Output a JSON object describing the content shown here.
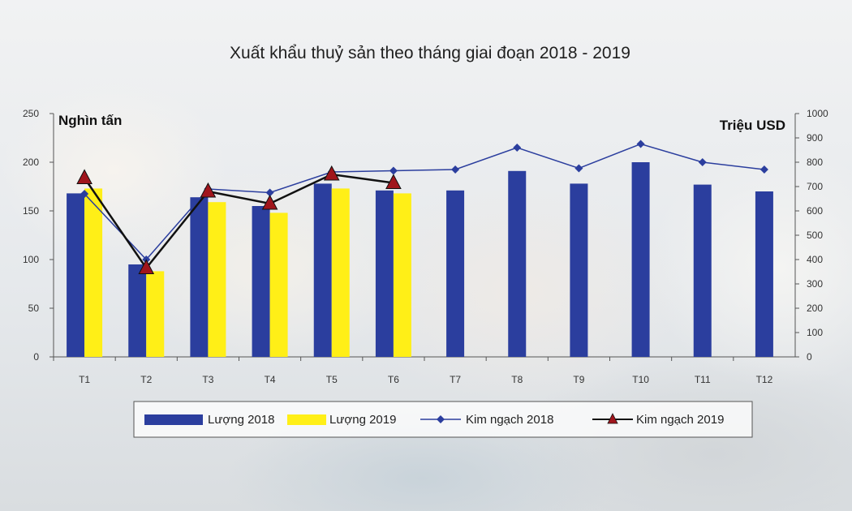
{
  "chart_data": {
    "type": "bar",
    "title": "Xuất khẩu thuỷ sản theo tháng giai đoạn 2018 - 2019",
    "ylabel_left": "Nghìn tấn",
    "ylabel_right": "Triệu USD",
    "categories": [
      "T1",
      "T2",
      "T3",
      "T4",
      "T5",
      "T6",
      "T7",
      "T8",
      "T9",
      "T10",
      "T11",
      "T12"
    ],
    "y_left": {
      "range": [
        0,
        250
      ],
      "ticks": [
        "0",
        "50",
        "100",
        "150",
        "200",
        "250"
      ]
    },
    "y_right": {
      "range": [
        0,
        1000
      ],
      "ticks": [
        "0",
        "100",
        "200",
        "300",
        "400",
        "500",
        "600",
        "700",
        "800",
        "900",
        "1000"
      ]
    },
    "series": [
      {
        "name": "Lượng 2018",
        "type": "bar",
        "axis": "left",
        "color": "#2b3e9e",
        "values": [
          168,
          95,
          164,
          155,
          178,
          171,
          171,
          191,
          178,
          200,
          177,
          170
        ]
      },
      {
        "name": "Lượng 2019",
        "type": "bar",
        "axis": "left",
        "color": "#ffef17",
        "values": [
          173,
          88,
          159,
          148,
          173,
          168,
          null,
          null,
          null,
          null,
          null,
          null
        ]
      },
      {
        "name": "Kim ngạch 2018",
        "type": "line",
        "axis": "right",
        "color": "#2b3e9e",
        "marker": "diamond",
        "values": [
          670,
          400,
          690,
          675,
          760,
          765,
          770,
          860,
          775,
          875,
          800,
          770
        ]
      },
      {
        "name": "Kim ngạch 2019",
        "type": "line",
        "axis": "right",
        "color": "#111111",
        "marker": "triangle",
        "marker_color": "#a0151c",
        "values": [
          735,
          365,
          680,
          630,
          750,
          715,
          null,
          null,
          null,
          null,
          null,
          null
        ]
      }
    ],
    "legend_position": "bottom",
    "grid": false
  }
}
